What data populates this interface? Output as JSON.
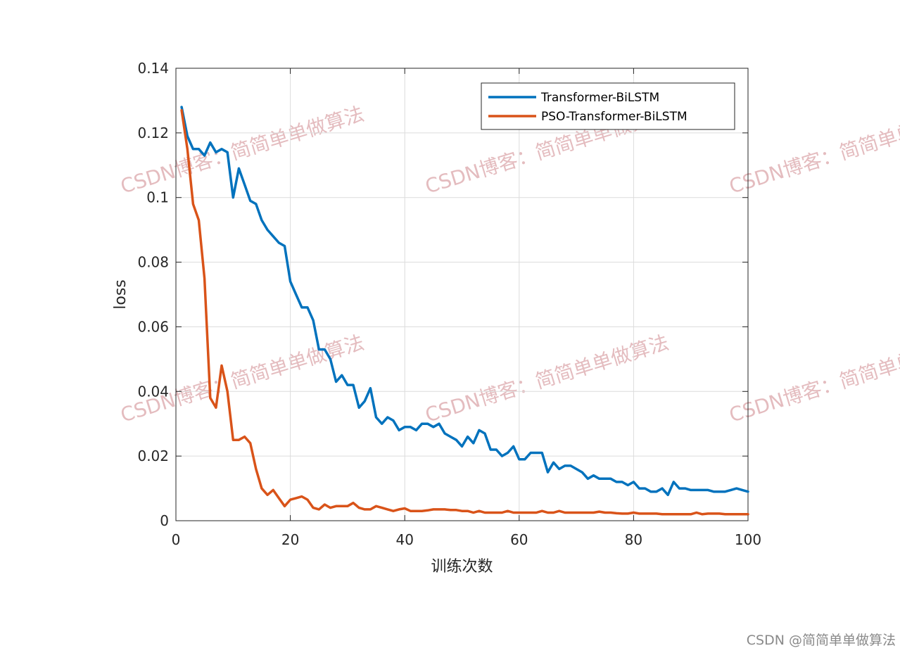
{
  "chart_data": {
    "type": "line",
    "title": "",
    "xlabel": "训练次数",
    "ylabel": "loss",
    "xlim": [
      0,
      100
    ],
    "ylim": [
      0,
      0.14
    ],
    "xticks": [
      "0",
      "20",
      "40",
      "60",
      "80",
      "100"
    ],
    "yticks": [
      "0",
      "0.02",
      "0.04",
      "0.06",
      "0.08",
      "0.1",
      "0.12",
      "0.14"
    ],
    "grid": true,
    "legend_position": "top-right",
    "x": [
      1,
      2,
      3,
      4,
      5,
      6,
      7,
      8,
      9,
      10,
      11,
      12,
      13,
      14,
      15,
      16,
      17,
      18,
      19,
      20,
      21,
      22,
      23,
      24,
      25,
      26,
      27,
      28,
      29,
      30,
      31,
      32,
      33,
      34,
      35,
      36,
      37,
      38,
      39,
      40,
      41,
      42,
      43,
      44,
      45,
      46,
      47,
      48,
      49,
      50,
      51,
      52,
      53,
      54,
      55,
      56,
      57,
      58,
      59,
      60,
      61,
      62,
      63,
      64,
      65,
      66,
      67,
      68,
      69,
      70,
      71,
      72,
      73,
      74,
      75,
      76,
      77,
      78,
      79,
      80,
      81,
      82,
      83,
      84,
      85,
      86,
      87,
      88,
      89,
      90,
      91,
      92,
      93,
      94,
      95,
      96,
      97,
      98,
      99,
      100
    ],
    "series": [
      {
        "name": "Transformer-BiLSTM",
        "color": "#0072BD",
        "values": [
          0.128,
          0.119,
          0.115,
          0.115,
          0.113,
          0.117,
          0.114,
          0.115,
          0.114,
          0.1,
          0.109,
          0.104,
          0.099,
          0.098,
          0.093,
          0.09,
          0.088,
          0.086,
          0.085,
          0.074,
          0.07,
          0.066,
          0.066,
          0.062,
          0.053,
          0.053,
          0.05,
          0.043,
          0.045,
          0.042,
          0.042,
          0.035,
          0.037,
          0.041,
          0.032,
          0.03,
          0.032,
          0.031,
          0.028,
          0.029,
          0.029,
          0.028,
          0.03,
          0.03,
          0.029,
          0.03,
          0.027,
          0.026,
          0.025,
          0.023,
          0.026,
          0.024,
          0.028,
          0.027,
          0.022,
          0.022,
          0.02,
          0.021,
          0.023,
          0.019,
          0.019,
          0.021,
          0.021,
          0.021,
          0.015,
          0.018,
          0.016,
          0.017,
          0.017,
          0.016,
          0.015,
          0.013,
          0.014,
          0.013,
          0.013,
          0.013,
          0.012,
          0.012,
          0.011,
          0.012,
          0.01,
          0.01,
          0.009,
          0.009,
          0.01,
          0.008,
          0.012,
          0.01,
          0.01,
          0.0095,
          0.0095,
          0.0095,
          0.0095,
          0.009,
          0.009,
          0.009,
          0.0095,
          0.01,
          0.0095,
          0.009
        ]
      },
      {
        "name": "PSO-Transformer-BiLSTM",
        "color": "#D95319",
        "values": [
          0.127,
          0.115,
          0.098,
          0.093,
          0.075,
          0.038,
          0.035,
          0.048,
          0.04,
          0.025,
          0.025,
          0.026,
          0.024,
          0.016,
          0.01,
          0.008,
          0.0095,
          0.007,
          0.0045,
          0.0065,
          0.007,
          0.0075,
          0.0065,
          0.004,
          0.0035,
          0.005,
          0.004,
          0.0045,
          0.0045,
          0.0045,
          0.0055,
          0.004,
          0.0035,
          0.0035,
          0.0045,
          0.004,
          0.0035,
          0.003,
          0.0035,
          0.0038,
          0.003,
          0.003,
          0.003,
          0.0032,
          0.0035,
          0.0035,
          0.0035,
          0.0033,
          0.0033,
          0.003,
          0.003,
          0.0025,
          0.003,
          0.0025,
          0.0025,
          0.0025,
          0.0025,
          0.003,
          0.0025,
          0.0025,
          0.0025,
          0.0025,
          0.0025,
          0.003,
          0.0025,
          0.0025,
          0.003,
          0.0025,
          0.0025,
          0.0025,
          0.0025,
          0.0025,
          0.0025,
          0.0028,
          0.0025,
          0.0025,
          0.0023,
          0.0022,
          0.0022,
          0.0025,
          0.0022,
          0.0022,
          0.0022,
          0.0022,
          0.002,
          0.002,
          0.002,
          0.002,
          0.002,
          0.002,
          0.0025,
          0.002,
          0.0022,
          0.0022,
          0.0022,
          0.002,
          0.002,
          0.002,
          0.002,
          0.002
        ]
      }
    ]
  },
  "watermark": {
    "text": "CSDN博客：简简单单做算法",
    "footer": "CSDN @简简单单做算法"
  }
}
